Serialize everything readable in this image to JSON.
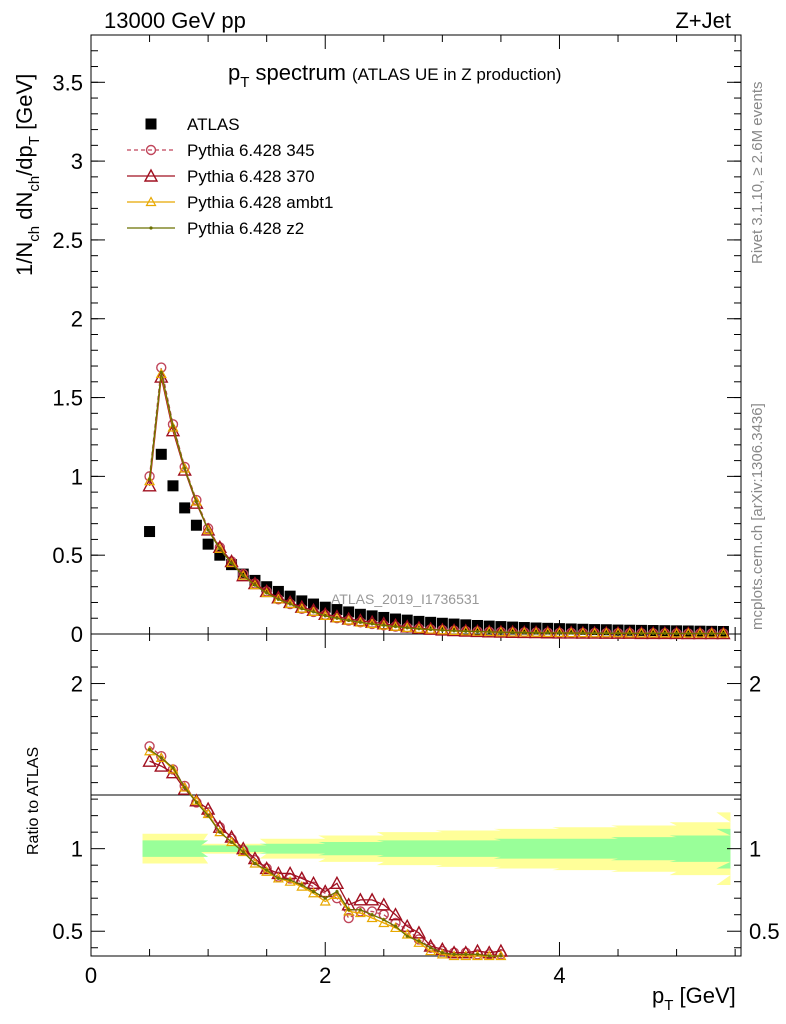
{
  "header": {
    "left": "13000 GeV pp",
    "right": "Z+Jet"
  },
  "side_labels": {
    "rivet": "Rivet 3.1.10, ≥ 2.6M events",
    "mcplots": "mcplots.cern.ch [arXiv:1306.3436]"
  },
  "title": {
    "main": "p",
    "main_sub": "T",
    "main_rest": " spectrum",
    "small": "(ATLAS UE in Z production)"
  },
  "ylabel": {
    "p1": "1/N",
    "s1": "ch",
    "p2": " dN",
    "s2": "ch",
    "p3": "/dp",
    "s3": "T",
    "p4": " [GeV]"
  },
  "xlabel": {
    "main": "p",
    "sub": "T",
    "rest": " [GeV]"
  },
  "ratio_ylabel": "Ratio to ATLAS",
  "watermark": "ATLAS_2019_I1736531",
  "legend": [
    {
      "label": "ATLAS",
      "color": "#000000",
      "marker": "square"
    },
    {
      "label": "Pythia 6.428 345",
      "color": "#c0455a",
      "marker": "circle",
      "dashed": true
    },
    {
      "label": "Pythia 6.428 370",
      "color": "#a01020",
      "marker": "triangle"
    },
    {
      "label": "Pythia 6.428 ambt1",
      "color": "#e8a800",
      "marker": "triangle-small"
    },
    {
      "label": "Pythia 6.428 z2",
      "color": "#6b7000",
      "marker": "dot"
    }
  ],
  "chart_data": [
    {
      "type": "scatter",
      "panel": "main",
      "xlim": [
        0,
        5.55
      ],
      "ylim": [
        0,
        3.8
      ],
      "xticks": [
        0,
        2,
        4
      ],
      "yticks": [
        0,
        0.5,
        1,
        1.5,
        2,
        2.5,
        3,
        3.5
      ],
      "x": [
        0.5,
        0.6,
        0.7,
        0.8,
        0.9,
        1.0,
        1.1,
        1.2,
        1.3,
        1.4,
        1.5,
        1.6,
        1.7,
        1.8,
        1.9,
        2.0,
        2.1,
        2.2,
        2.3,
        2.4,
        2.5,
        2.6,
        2.7,
        2.8,
        2.9,
        3.0,
        3.1,
        3.2,
        3.3,
        3.4,
        3.5,
        3.6,
        3.7,
        3.8,
        3.9,
        4.0,
        4.1,
        4.2,
        4.3,
        4.4,
        4.5,
        4.6,
        4.7,
        4.8,
        4.9,
        5.0,
        5.1,
        5.2,
        5.3,
        5.4
      ],
      "series": [
        {
          "name": "ATLAS",
          "values": [
            0.65,
            1.14,
            0.94,
            0.8,
            0.69,
            0.57,
            0.5,
            0.44,
            0.38,
            0.34,
            0.3,
            0.27,
            0.24,
            0.21,
            0.19,
            0.17,
            0.155,
            0.14,
            0.125,
            0.115,
            0.105,
            0.095,
            0.088,
            0.08,
            0.074,
            0.068,
            0.063,
            0.058,
            0.054,
            0.05,
            0.047,
            0.044,
            0.041,
            0.038,
            0.036,
            0.034,
            0.032,
            0.03,
            0.028,
            0.027,
            0.025,
            0.024,
            0.023,
            0.022,
            0.021,
            0.02,
            0.019,
            0.018,
            0.017,
            0.016
          ]
        },
        {
          "name": "Pythia 6.428 345",
          "values": [
            1.0,
            1.69,
            1.33,
            1.06,
            0.85,
            0.67,
            0.55,
            0.46,
            0.38,
            0.32,
            0.27,
            0.22,
            0.19,
            0.16,
            0.14,
            0.12,
            0.1,
            0.085,
            0.074,
            0.064,
            0.055,
            0.047,
            0.04,
            0.034,
            0.029,
            0.025,
            0.021,
            0.018,
            0.016,
            0.014,
            0.012,
            0.011,
            0.01,
            0.009,
            0.008,
            0.007,
            0.007,
            0.006,
            0.006,
            0.005,
            0.005,
            0.005,
            0.004,
            0.004,
            0.004,
            0.004,
            0.003,
            0.003,
            0.003,
            0.003
          ]
        },
        {
          "name": "Pythia 6.428 370",
          "values": [
            0.94,
            1.63,
            1.29,
            1.04,
            0.83,
            0.66,
            0.55,
            0.46,
            0.37,
            0.32,
            0.27,
            0.23,
            0.2,
            0.17,
            0.15,
            0.125,
            0.11,
            0.095,
            0.085,
            0.075,
            0.065,
            0.055,
            0.046,
            0.038,
            0.031,
            0.026,
            0.022,
            0.019,
            0.016,
            0.014,
            0.012,
            0.011,
            0.01,
            0.009,
            0.008,
            0.007,
            0.007,
            0.006,
            0.006,
            0.005,
            0.005,
            0.005,
            0.004,
            0.004,
            0.004,
            0.004,
            0.003,
            0.003,
            0.003,
            0.003
          ]
        },
        {
          "name": "Pythia 6.428 ambt1",
          "values": [
            0.97,
            1.65,
            1.31,
            1.05,
            0.84,
            0.66,
            0.54,
            0.45,
            0.37,
            0.31,
            0.26,
            0.22,
            0.19,
            0.16,
            0.14,
            0.115,
            0.1,
            0.085,
            0.073,
            0.063,
            0.054,
            0.046,
            0.039,
            0.033,
            0.028,
            0.024,
            0.02,
            0.017,
            0.015,
            0.013,
            0.011,
            0.01,
            0.009,
            0.008,
            0.007,
            0.007,
            0.006,
            0.006,
            0.005,
            0.005,
            0.005,
            0.004,
            0.004,
            0.004,
            0.004,
            0.003,
            0.003,
            0.003,
            0.003,
            0.003
          ]
        },
        {
          "name": "Pythia 6.428 z2",
          "values": [
            0.98,
            1.66,
            1.32,
            1.05,
            0.84,
            0.66,
            0.54,
            0.45,
            0.37,
            0.31,
            0.26,
            0.22,
            0.19,
            0.16,
            0.14,
            0.115,
            0.1,
            0.086,
            0.074,
            0.064,
            0.055,
            0.047,
            0.039,
            0.033,
            0.028,
            0.024,
            0.02,
            0.017,
            0.015,
            0.013,
            0.011,
            0.01,
            0.009,
            0.008,
            0.007,
            0.007,
            0.006,
            0.006,
            0.005,
            0.005,
            0.005,
            0.004,
            0.004,
            0.004,
            0.004,
            0.003,
            0.003,
            0.003,
            0.003,
            0.003
          ]
        }
      ]
    },
    {
      "type": "line",
      "panel": "ratio",
      "xlim": [
        0,
        5.55
      ],
      "ylim": [
        0.35,
        2.3
      ],
      "yticks": [
        0.5,
        1,
        2
      ],
      "x": [
        0.5,
        0.6,
        0.7,
        0.8,
        0.9,
        1.0,
        1.1,
        1.2,
        1.3,
        1.4,
        1.5,
        1.6,
        1.7,
        1.8,
        1.9,
        2.0,
        2.1,
        2.2,
        2.3,
        2.4,
        2.5,
        2.6,
        2.7,
        2.8,
        2.9,
        3.0,
        3.1,
        3.2,
        3.3,
        3.4,
        3.5
      ],
      "band_x": [
        0.5,
        1.0,
        1.5,
        2.0,
        2.5,
        3.0,
        3.5,
        4.0,
        4.5,
        5.0,
        5.4
      ],
      "band_inner": [
        0.05,
        0.02,
        0.03,
        0.04,
        0.05,
        0.05,
        0.06,
        0.06,
        0.07,
        0.08,
        0.12
      ],
      "band_outer": [
        0.09,
        0.03,
        0.06,
        0.08,
        0.1,
        0.11,
        0.12,
        0.13,
        0.14,
        0.16,
        0.22
      ],
      "series": [
        {
          "name": "Pythia 6.428 345",
          "values": [
            1.62,
            1.56,
            1.48,
            1.38,
            1.28,
            1.22,
            1.13,
            1.06,
            0.99,
            0.93,
            0.88,
            0.83,
            0.82,
            0.8,
            0.77,
            0.73,
            0.7,
            0.58,
            0.62,
            0.62,
            0.6,
            0.55,
            0.51,
            0.45,
            0.4,
            0.38,
            0.37,
            0.37,
            0.36,
            0.36,
            0.36
          ]
        },
        {
          "name": "Pythia 6.428 370",
          "values": [
            1.53,
            1.5,
            1.46,
            1.36,
            1.29,
            1.24,
            1.13,
            1.07,
            1.0,
            0.94,
            0.88,
            0.85,
            0.85,
            0.82,
            0.79,
            0.74,
            0.79,
            0.66,
            0.69,
            0.69,
            0.66,
            0.6,
            0.53,
            0.49,
            0.41,
            0.39,
            0.37,
            0.37,
            0.38,
            0.37,
            0.38
          ]
        },
        {
          "name": "Pythia 6.428 ambt1",
          "values": [
            1.59,
            1.55,
            1.48,
            1.37,
            1.29,
            1.21,
            1.1,
            1.04,
            0.98,
            0.91,
            0.86,
            0.82,
            0.8,
            0.77,
            0.73,
            0.68,
            0.72,
            0.62,
            0.61,
            0.58,
            0.55,
            0.52,
            0.48,
            0.43,
            0.38,
            0.36,
            0.35,
            0.35,
            0.35,
            0.35,
            0.35
          ]
        },
        {
          "name": "Pythia 6.428 z2",
          "values": [
            1.6,
            1.55,
            1.49,
            1.37,
            1.28,
            1.2,
            1.1,
            1.04,
            0.98,
            0.91,
            0.87,
            0.82,
            0.81,
            0.78,
            0.74,
            0.7,
            0.74,
            0.63,
            0.63,
            0.6,
            0.57,
            0.53,
            0.47,
            0.44,
            0.4,
            0.37,
            0.36,
            0.36,
            0.36,
            0.35,
            0.35
          ]
        }
      ]
    }
  ]
}
